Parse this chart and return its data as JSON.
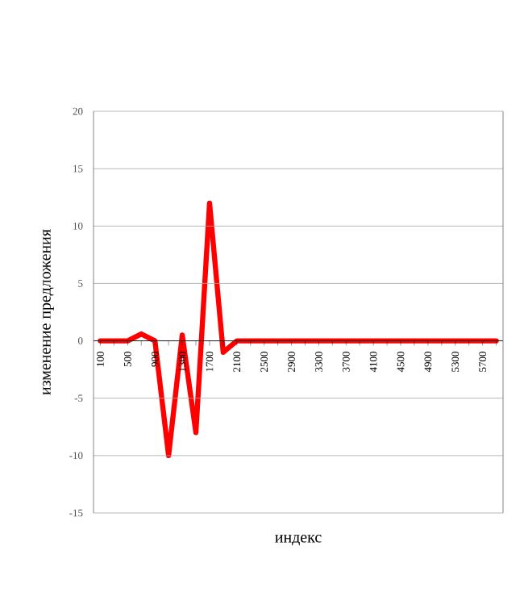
{
  "chart_data": {
    "type": "line",
    "xlabel": "индекс",
    "ylabel": "изменение предложения",
    "categories": [
      "100",
      null,
      "500",
      null,
      "900",
      null,
      "1300",
      null,
      "1700",
      null,
      "2100",
      null,
      "2500",
      null,
      "2900",
      null,
      "3300",
      null,
      "3700",
      null,
      "4100",
      null,
      "4500",
      null,
      "4900",
      null,
      "5300",
      null,
      "5700",
      null
    ],
    "values": [
      0,
      0,
      0,
      0.6,
      0,
      -10,
      0.5,
      -8,
      12,
      -1,
      0,
      0,
      0,
      0,
      0,
      0,
      0,
      0,
      0,
      0,
      0,
      0,
      0,
      0,
      0,
      0,
      0,
      0,
      0,
      0
    ],
    "color": "#ff0000",
    "ylim": [
      -15,
      20
    ],
    "yticks": [
      -15,
      -10,
      -5,
      0,
      5,
      10,
      15,
      20
    ],
    "grid": "y"
  }
}
